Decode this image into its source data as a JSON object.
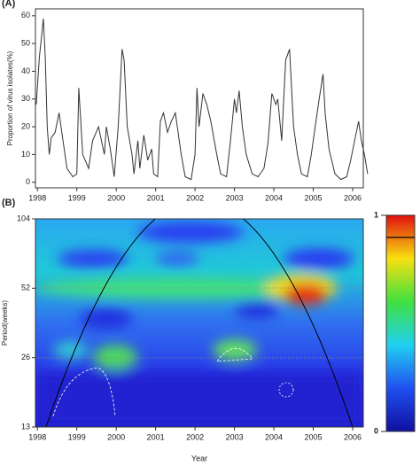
{
  "chart_data": [
    {
      "type": "line",
      "panel_label": "(A)",
      "y_label": "Proportion of virus isolates(%)",
      "xlim": [
        1997.95,
        2006.27
      ],
      "ylim": [
        -2,
        62.5
      ],
      "xticks": [
        1998,
        1999,
        2000,
        2001,
        2002,
        2003,
        2004,
        2005,
        2006
      ],
      "yticks": [
        0,
        10,
        20,
        30,
        40,
        50,
        60
      ],
      "color": "#333333",
      "x": [
        1997.97,
        1998.05,
        1998.1,
        1998.15,
        1998.2,
        1998.25,
        1998.3,
        1998.35,
        1998.45,
        1998.55,
        1998.65,
        1998.75,
        1998.9,
        1999.0,
        1999.05,
        1999.15,
        1999.3,
        1999.4,
        1999.55,
        1999.7,
        1999.75,
        1999.85,
        1999.95,
        2000.05,
        2000.15,
        2000.2,
        2000.28,
        2000.4,
        2000.45,
        2000.55,
        2000.6,
        2000.7,
        2000.8,
        2000.9,
        2000.95,
        2001.05,
        2001.12,
        2001.2,
        2001.3,
        2001.4,
        2001.5,
        2001.55,
        2001.65,
        2001.75,
        2001.9,
        2002.0,
        2002.05,
        2002.1,
        2002.2,
        2002.3,
        2002.4,
        2002.55,
        2002.65,
        2002.8,
        2002.9,
        2003.0,
        2003.05,
        2003.12,
        2003.2,
        2003.3,
        2003.45,
        2003.6,
        2003.75,
        2003.85,
        2003.95,
        2004.05,
        2004.1,
        2004.2,
        2004.3,
        2004.4,
        2004.5,
        2004.6,
        2004.7,
        2004.85,
        2004.95,
        2005.05,
        2005.15,
        2005.25,
        2005.3,
        2005.4,
        2005.55,
        2005.7,
        2005.85,
        2005.95,
        2006.05,
        2006.15,
        2006.22,
        2006.3,
        2006.38
      ],
      "values": [
        28,
        45,
        52,
        59,
        45,
        20,
        10,
        16,
        18,
        25,
        15,
        5,
        2,
        3,
        34,
        10,
        5,
        15,
        20,
        10,
        20,
        12,
        2,
        20,
        48,
        44,
        20,
        10,
        3,
        15,
        5,
        17,
        8,
        12,
        3,
        2,
        22,
        25,
        18,
        22,
        25,
        20,
        10,
        2,
        1,
        10,
        34,
        20,
        32,
        28,
        22,
        10,
        3,
        2,
        15,
        30,
        25,
        33,
        20,
        10,
        3,
        2,
        5,
        14,
        32,
        28,
        30,
        15,
        44,
        48,
        20,
        10,
        3,
        2,
        10,
        20,
        30,
        39,
        25,
        12,
        3,
        1,
        2,
        8,
        15,
        22,
        15,
        10,
        3
      ]
    },
    {
      "type": "heatmap",
      "panel_label": "(B)",
      "x_label": "Year",
      "y_label": "Period(weeks)",
      "xlim": [
        1997.95,
        2006.27
      ],
      "ylim": [
        13,
        104
      ],
      "log_y": true,
      "xticks": [
        1998,
        1999,
        2000,
        2001,
        2002,
        2003,
        2004,
        2005,
        2006
      ],
      "yticks": [
        13,
        26,
        52,
        104
      ],
      "colorbar": {
        "ylim": [
          0,
          1
        ],
        "yticks": [
          0,
          1
        ]
      }
    }
  ]
}
